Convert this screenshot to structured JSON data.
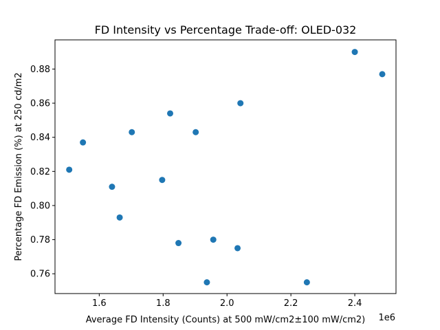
{
  "chart_data": {
    "type": "scatter",
    "title": "FD Intensity vs Percentage Trade-off: OLED-032",
    "xlabel": "Average FD Intensity (Counts) at 500 mW/cm2±100 mW/cm2)",
    "ylabel": "Percentage FD Emission (%) at 250 cd/m2",
    "x_offset_label": "1e6",
    "xlim": [
      1.4615,
      2.529
    ],
    "ylim": [
      0.7484,
      0.8971
    ],
    "x_ticks": [
      1.6,
      1.8,
      2.0,
      2.2,
      2.4
    ],
    "x_tick_labels": [
      "1.6",
      "1.8",
      "2.0",
      "2.2",
      "2.4"
    ],
    "y_ticks": [
      0.76,
      0.78,
      0.8,
      0.82,
      0.84,
      0.86,
      0.88
    ],
    "y_tick_labels": [
      "0.76",
      "0.78",
      "0.80",
      "0.82",
      "0.84",
      "0.86",
      "0.88"
    ],
    "grid": false,
    "marker_color": "#1f77b4",
    "points": [
      {
        "x": 1.506,
        "y": 0.821
      },
      {
        "x": 1.549,
        "y": 0.837
      },
      {
        "x": 1.64,
        "y": 0.811
      },
      {
        "x": 1.664,
        "y": 0.793
      },
      {
        "x": 1.702,
        "y": 0.843
      },
      {
        "x": 1.797,
        "y": 0.815
      },
      {
        "x": 1.822,
        "y": 0.854
      },
      {
        "x": 1.848,
        "y": 0.778
      },
      {
        "x": 1.902,
        "y": 0.843
      },
      {
        "x": 1.937,
        "y": 0.755
      },
      {
        "x": 1.957,
        "y": 0.78
      },
      {
        "x": 2.033,
        "y": 0.775
      },
      {
        "x": 2.042,
        "y": 0.86
      },
      {
        "x": 2.25,
        "y": 0.755
      },
      {
        "x": 2.4,
        "y": 0.89
      },
      {
        "x": 2.486,
        "y": 0.877
      }
    ]
  }
}
